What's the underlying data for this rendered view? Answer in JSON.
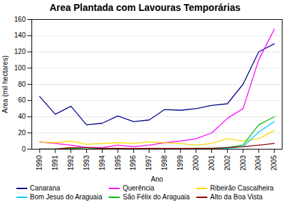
{
  "chart_data": {
    "type": "line",
    "title": "Area Plantada com Lavouras Temporárias",
    "xlabel": "Ano",
    "ylabel": "Area (mil hectares)",
    "x": [
      1990,
      1991,
      1992,
      1993,
      1994,
      1995,
      1996,
      1997,
      1998,
      1999,
      2000,
      2001,
      2002,
      2003,
      2004,
      2005
    ],
    "series": [
      {
        "name": "Canarana",
        "color": "#00008B",
        "values": [
          65,
          43,
          53,
          30,
          32,
          41,
          34,
          36,
          49,
          48,
          50,
          54,
          56,
          80,
          120,
          130
        ]
      },
      {
        "name": "Querência",
        "color": "#FF00FF",
        "values": [
          9,
          7,
          5,
          2,
          2,
          5,
          3,
          5,
          8,
          10,
          13,
          20,
          38,
          50,
          110,
          148
        ]
      },
      {
        "name": "Ribeirão Cascalheira",
        "color": "#FFD700",
        "values": [
          9,
          8,
          10,
          6,
          7,
          8,
          7,
          9,
          8,
          7,
          5,
          7,
          13,
          10,
          13,
          23
        ]
      },
      {
        "name": "Bom Jesus do Araguaia",
        "color": "#00CCFF",
        "values": [
          0,
          0,
          0,
          0,
          0,
          0,
          0,
          0,
          0,
          0,
          0,
          0,
          1,
          3,
          21,
          34
        ]
      },
      {
        "name": "São Félix do Araguaia",
        "color": "#00BB00",
        "values": [
          0,
          0,
          1,
          0,
          1,
          1,
          0,
          1,
          0,
          0,
          1,
          1,
          2,
          5,
          30,
          40
        ]
      },
      {
        "name": "Alto da Boa Vista",
        "color": "#8B0000",
        "values": [
          0,
          0,
          2,
          2,
          1,
          1,
          1,
          1,
          1,
          1,
          1,
          1,
          2,
          3,
          5,
          7
        ]
      }
    ],
    "xlim": [
      1989.5,
      2005.5
    ],
    "xticks": [
      1990,
      1991,
      1992,
      1993,
      1994,
      1995,
      1996,
      1997,
      1998,
      1999,
      2000,
      2001,
      2002,
      2003,
      2004,
      2005
    ],
    "ylim": [
      0,
      160
    ],
    "yticks": [
      0,
      20,
      40,
      60,
      80,
      100,
      120,
      140,
      160
    ],
    "grid": true,
    "legend": "bottom"
  }
}
